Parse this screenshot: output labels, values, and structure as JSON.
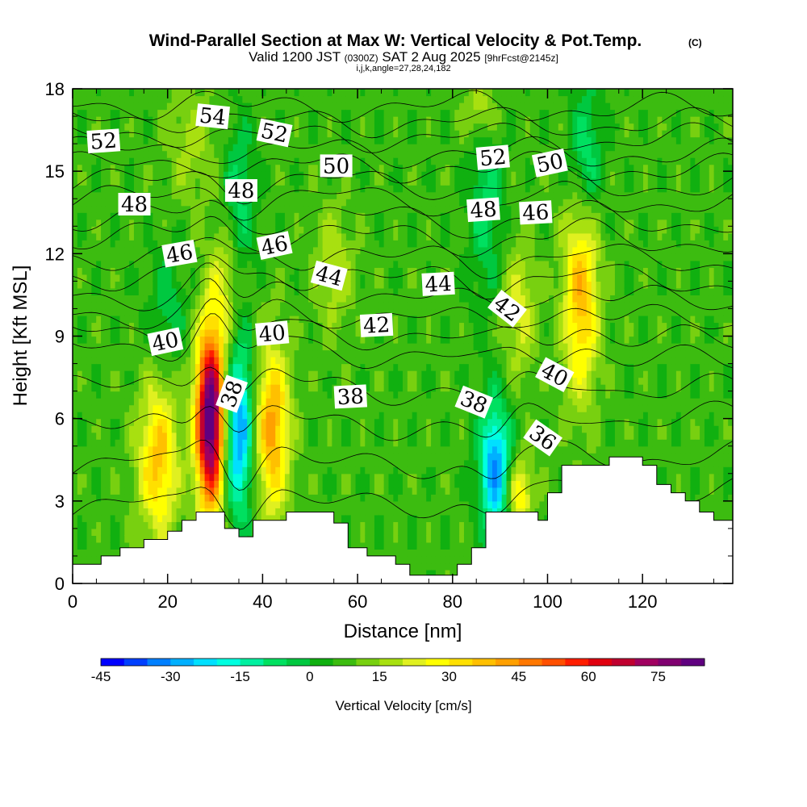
{
  "header": {
    "title_main": "Wind-Parallel Section at Max W: Vertical Velocity & Pot.Temp.",
    "title_tag": "(C)",
    "valid_prefix": "Valid 1200 JST",
    "valid_utc": "(0300Z)",
    "valid_date": "SAT 2 Aug 2025",
    "valid_fcst": "[9hrFcst@2145z]",
    "indices": "i,j,k,angle=27,28,24,182"
  },
  "chart_data": {
    "type": "heatmap",
    "title": "Wind-Parallel Section at Max W: Vertical Velocity & Pot.Temp.",
    "xlabel": "Distance [nm]",
    "ylabel": "Height [Kft MSL]",
    "xlim": [
      0,
      139
    ],
    "ylim": [
      0,
      18
    ],
    "x_ticks": [
      "0",
      "20",
      "40",
      "60",
      "80",
      "100",
      "120"
    ],
    "y_ticks": [
      "0",
      "3",
      "6",
      "9",
      "12",
      "15",
      "18"
    ],
    "colorbar": {
      "label": "Vertical Velocity [cm/s]",
      "tick_labels": [
        "-45",
        "-30",
        "-15",
        "0",
        "15",
        "30",
        "45",
        "60",
        "75"
      ],
      "colors": [
        "#0000ff",
        "#0040ff",
        "#0080ff",
        "#00b0ff",
        "#00e0ff",
        "#00ffe0",
        "#00f0a0",
        "#00e060",
        "#00c840",
        "#10b010",
        "#3cbc10",
        "#78d010",
        "#a8e010",
        "#e0f020",
        "#ffff00",
        "#ffe000",
        "#ffc000",
        "#ffa000",
        "#ff7800",
        "#ff5000",
        "#ff1e00",
        "#e00010",
        "#c00030",
        "#a00060",
        "#800070",
        "#600080"
      ]
    },
    "terrain": [
      [
        0,
        0.7
      ],
      [
        6,
        0.7
      ],
      [
        6,
        1.0
      ],
      [
        10,
        1.0
      ],
      [
        10,
        1.3
      ],
      [
        15,
        1.3
      ],
      [
        15,
        1.6
      ],
      [
        20,
        1.6
      ],
      [
        20,
        1.9
      ],
      [
        23,
        1.9
      ],
      [
        23,
        2.3
      ],
      [
        26,
        2.3
      ],
      [
        26,
        2.6
      ],
      [
        32,
        2.6
      ],
      [
        32,
        2.0
      ],
      [
        35,
        2.0
      ],
      [
        35,
        1.7
      ],
      [
        38,
        1.7
      ],
      [
        38,
        2.3
      ],
      [
        45,
        2.3
      ],
      [
        45,
        2.6
      ],
      [
        55,
        2.6
      ],
      [
        55,
        2.2
      ],
      [
        58,
        2.2
      ],
      [
        58,
        1.3
      ],
      [
        62,
        1.3
      ],
      [
        62,
        1.0
      ],
      [
        68,
        1.0
      ],
      [
        68,
        0.7
      ],
      [
        71,
        0.7
      ],
      [
        71,
        0.3
      ],
      [
        81,
        0.3
      ],
      [
        81,
        0.7
      ],
      [
        84,
        0.7
      ],
      [
        84,
        1.3
      ],
      [
        87,
        1.3
      ],
      [
        87,
        2.6
      ],
      [
        98,
        2.6
      ],
      [
        98,
        2.3
      ],
      [
        100,
        2.3
      ],
      [
        100,
        3.3
      ],
      [
        103,
        3.3
      ],
      [
        103,
        4.3
      ],
      [
        113,
        4.3
      ],
      [
        113,
        4.6
      ],
      [
        120,
        4.6
      ],
      [
        120,
        4.3
      ],
      [
        123,
        4.3
      ],
      [
        123,
        3.6
      ],
      [
        126,
        3.6
      ],
      [
        126,
        3.3
      ],
      [
        129,
        3.3
      ],
      [
        129,
        3.0
      ],
      [
        132,
        3.0
      ],
      [
        132,
        2.6
      ],
      [
        135,
        2.6
      ],
      [
        135,
        2.3
      ],
      [
        139,
        2.3
      ]
    ],
    "series": [
      {
        "name": "cell",
        "x": 29,
        "y": 6.0,
        "w": 82,
        "sx": 2.1,
        "sy": 2.3
      },
      {
        "name": "cell",
        "x": 35,
        "y": 5.6,
        "w": -38,
        "sx": 2.2,
        "sy": 2.2
      },
      {
        "name": "cell",
        "x": 42,
        "y": 5.6,
        "w": 35,
        "sx": 2.6,
        "sy": 2.2
      },
      {
        "name": "cell",
        "x": 18,
        "y": 4.5,
        "w": 30,
        "sx": 3.0,
        "sy": 2.0
      },
      {
        "name": "cell",
        "x": 89,
        "y": 4.2,
        "w": -38,
        "sx": 2.3,
        "sy": 1.7
      },
      {
        "name": "cell",
        "x": 94,
        "y": 3.3,
        "w": 24,
        "sx": 2.0,
        "sy": 0.9
      },
      {
        "name": "cell",
        "x": 107,
        "y": 10.5,
        "w": 32,
        "sx": 2.6,
        "sy": 2.6
      },
      {
        "name": "cell",
        "x": 108,
        "y": 15.5,
        "w": -18,
        "sx": 2.4,
        "sy": 1.8
      },
      {
        "name": "cell",
        "x": 87,
        "y": 14.0,
        "w": -14,
        "sx": 2.6,
        "sy": 2.6
      },
      {
        "name": "cell",
        "x": 86,
        "y": 17.2,
        "w": 16,
        "sx": 2.5,
        "sy": 0.9
      },
      {
        "name": "cell",
        "x": 32,
        "y": 11.0,
        "w": 14,
        "sx": 2.2,
        "sy": 1.8
      },
      {
        "name": "cell",
        "x": 35,
        "y": 14.0,
        "w": -14,
        "sx": 2.5,
        "sy": 1.9
      },
      {
        "name": "cell",
        "x": 25,
        "y": 16.0,
        "w": 10,
        "sx": 3.5,
        "sy": 1.5
      },
      {
        "name": "cell",
        "x": 55,
        "y": 11.5,
        "w": 12,
        "sx": 3.0,
        "sy": 1.6
      },
      {
        "name": "cell",
        "x": 94,
        "y": 10.0,
        "w": 15,
        "sx": 2.5,
        "sy": 1.8
      },
      {
        "name": "cell",
        "x": 20,
        "y": 10.0,
        "w": -10,
        "sx": 3.0,
        "sy": 1.5
      }
    ],
    "theta_contours": [
      {
        "level": 36,
        "y": 2.5,
        "slope": 0.006
      },
      {
        "level": 38,
        "y": 5.5,
        "slope": 0.004
      },
      {
        "level": 40,
        "y": 8.6,
        "slope": -0.004
      },
      {
        "level": 42,
        "y": 9.8,
        "slope": -0.002
      },
      {
        "level": 44,
        "y": 11.2,
        "slope": -0.002
      },
      {
        "level": 46,
        "y": 12.7,
        "slope": -0.002
      },
      {
        "level": 48,
        "y": 14.0,
        "slope": -0.001
      },
      {
        "level": 50,
        "y": 15.2,
        "slope": -0.001
      },
      {
        "level": 52,
        "y": 16.3,
        "slope": -0.001
      },
      {
        "level": 54,
        "y": 17.4,
        "slope": -0.001
      }
    ],
    "contour_labels": [
      {
        "text": "52",
        "x": 6.5,
        "y": 16.1,
        "rot": -4
      },
      {
        "text": "54",
        "x": 29.5,
        "y": 17.0,
        "rot": 6
      },
      {
        "text": "52",
        "x": 42.5,
        "y": 16.4,
        "rot": 12
      },
      {
        "text": "50",
        "x": 55.5,
        "y": 15.2,
        "rot": 0
      },
      {
        "text": "48",
        "x": 13.0,
        "y": 13.8,
        "rot": 0
      },
      {
        "text": "48",
        "x": 35.5,
        "y": 14.3,
        "rot": 0
      },
      {
        "text": "46",
        "x": 22.5,
        "y": 12.0,
        "rot": -10
      },
      {
        "text": "46",
        "x": 42.5,
        "y": 12.3,
        "rot": -12
      },
      {
        "text": "44",
        "x": 54.0,
        "y": 11.2,
        "rot": 15
      },
      {
        "text": "44",
        "x": 77.0,
        "y": 10.9,
        "rot": -3
      },
      {
        "text": "42",
        "x": 64.0,
        "y": 9.4,
        "rot": -3
      },
      {
        "text": "40",
        "x": 19.5,
        "y": 8.8,
        "rot": -12
      },
      {
        "text": "40",
        "x": 42.0,
        "y": 9.1,
        "rot": -5
      },
      {
        "text": "38",
        "x": 33.5,
        "y": 6.9,
        "rot": -70
      },
      {
        "text": "38",
        "x": 58.5,
        "y": 6.8,
        "rot": -3
      },
      {
        "text": "38",
        "x": 84.5,
        "y": 6.6,
        "rot": 22
      },
      {
        "text": "52",
        "x": 88.5,
        "y": 15.5,
        "rot": -5
      },
      {
        "text": "50",
        "x": 100.5,
        "y": 15.3,
        "rot": -12
      },
      {
        "text": "48",
        "x": 86.5,
        "y": 13.6,
        "rot": -4
      },
      {
        "text": "46",
        "x": 97.5,
        "y": 13.5,
        "rot": -3
      },
      {
        "text": "42",
        "x": 91.5,
        "y": 10.0,
        "rot": 38
      },
      {
        "text": "40",
        "x": 101.5,
        "y": 7.6,
        "rot": 28
      },
      {
        "text": "36",
        "x": 99.0,
        "y": 5.3,
        "rot": 35
      }
    ]
  }
}
